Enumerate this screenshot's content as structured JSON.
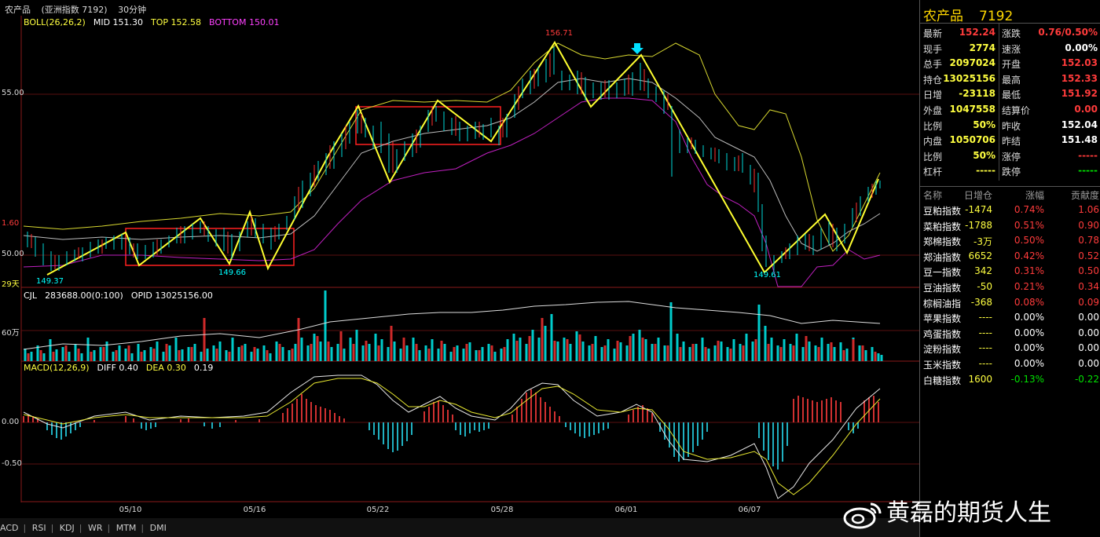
{
  "topbar": {
    "name": "农产品",
    "index": "(亚洲指数 7192)",
    "period": "30分钟"
  },
  "boll": {
    "label": "BOLL(26,26,2)",
    "mid": "MID 151.30",
    "top": "TOP 152.58",
    "bottom": "BOTTOM 150.01"
  },
  "cjl": {
    "label": "CJL",
    "value": "283688.00(0:100)",
    "opid": "OPID 13025156.00"
  },
  "macd": {
    "label": "MACD(12,26,9)",
    "diff": "DIFF 0.40",
    "dea": "DEA 0.30",
    "macd": "0.19"
  },
  "y_labels": {
    "p155": "55.00",
    "p150": "50.00",
    "v60": "60万",
    "m0": "0.00",
    "m05": "-0.50",
    "p1": "1.60",
    "p2": "29天"
  },
  "price_labels": {
    "high": "156.71",
    "low1": "149.37",
    "low2": "149.66",
    "low3": "149.61"
  },
  "x_labels": [
    "05/10",
    "05/16",
    "05/22",
    "05/28",
    "06/01",
    "06/07"
  ],
  "tabs": [
    "ACD",
    "RSI",
    "KDJ",
    "WR",
    "MTM",
    "DMI"
  ],
  "side": {
    "title_name": "农产品",
    "title_code": "7192",
    "quote": [
      {
        "l1": "最新",
        "v1": "152.24",
        "c1": "red",
        "l2": "涨跌",
        "v2": "0.76/0.50%",
        "c2": "red"
      },
      {
        "l1": "现手",
        "v1": "2774",
        "c1": "yellow",
        "l2": "速涨",
        "v2": "0.00%",
        "c2": "white"
      },
      {
        "l1": "总手",
        "v1": "2097024",
        "c1": "yellow",
        "l2": "开盘",
        "v2": "152.03",
        "c2": "red"
      },
      {
        "l1": "持仓",
        "v1": "13025156",
        "c1": "yellow",
        "l2": "最高",
        "v2": "152.33",
        "c2": "red"
      },
      {
        "l1": "日增",
        "v1": "-23118",
        "c1": "yellow",
        "l2": "最低",
        "v2": "151.92",
        "c2": "red"
      },
      {
        "l1": "外盘",
        "v1": "1047558",
        "c1": "yellow",
        "l2": "结算价",
        "v2": "0.00",
        "c2": "red"
      },
      {
        "l1": "比例",
        "v1": "50%",
        "c1": "yellow",
        "l2": "昨收",
        "v2": "152.04",
        "c2": "white"
      },
      {
        "l1": "内盘",
        "v1": "1050706",
        "c1": "yellow",
        "l2": "昨结",
        "v2": "151.48",
        "c2": "white"
      },
      {
        "l1": "比例",
        "v1": "50%",
        "c1": "yellow",
        "l2": "涨停",
        "v2": "-----",
        "c2": "red"
      },
      {
        "l1": "杠杆",
        "v1": "-----",
        "c1": "yellow",
        "l2": "跌停",
        "v2": "-----",
        "c2": "green"
      }
    ],
    "rank_head": [
      "名称",
      "日增仓",
      "涨幅",
      "贡献度"
    ],
    "rank": [
      {
        "name": "豆粕指数",
        "inc": "-1474",
        "chg": "0.74%",
        "con": "1.06",
        "cc": "red"
      },
      {
        "name": "菜粕指数",
        "inc": "-1788",
        "chg": "0.51%",
        "con": "0.90",
        "cc": "red"
      },
      {
        "name": "郑棉指数",
        "inc": "-3万",
        "chg": "0.50%",
        "con": "0.78",
        "cc": "red"
      },
      {
        "name": "郑油指数",
        "inc": "6652",
        "chg": "0.42%",
        "con": "0.52",
        "cc": "red"
      },
      {
        "name": "豆一指数",
        "inc": "342",
        "chg": "0.31%",
        "con": "0.50",
        "cc": "red"
      },
      {
        "name": "豆油指数",
        "inc": "-50",
        "chg": "0.21%",
        "con": "0.34",
        "cc": "red"
      },
      {
        "name": "棕榈油指",
        "inc": "-368",
        "chg": "0.08%",
        "con": "0.09",
        "cc": "red"
      },
      {
        "name": "苹果指数",
        "inc": "----",
        "chg": "0.00%",
        "con": "0.00",
        "cc": "white"
      },
      {
        "name": "鸡蛋指数",
        "inc": "----",
        "chg": "0.00%",
        "con": "0.00",
        "cc": "white"
      },
      {
        "name": "淀粉指数",
        "inc": "----",
        "chg": "0.00%",
        "con": "0.00",
        "cc": "white"
      },
      {
        "name": "玉米指数",
        "inc": "----",
        "chg": "0.00%",
        "con": "0.00",
        "cc": "white"
      },
      {
        "name": "白糖指数",
        "inc": "1600",
        "chg": "-0.13%",
        "con": "-0.22",
        "cc": "green"
      }
    ]
  },
  "watermark": "黄磊的期货人生"
}
